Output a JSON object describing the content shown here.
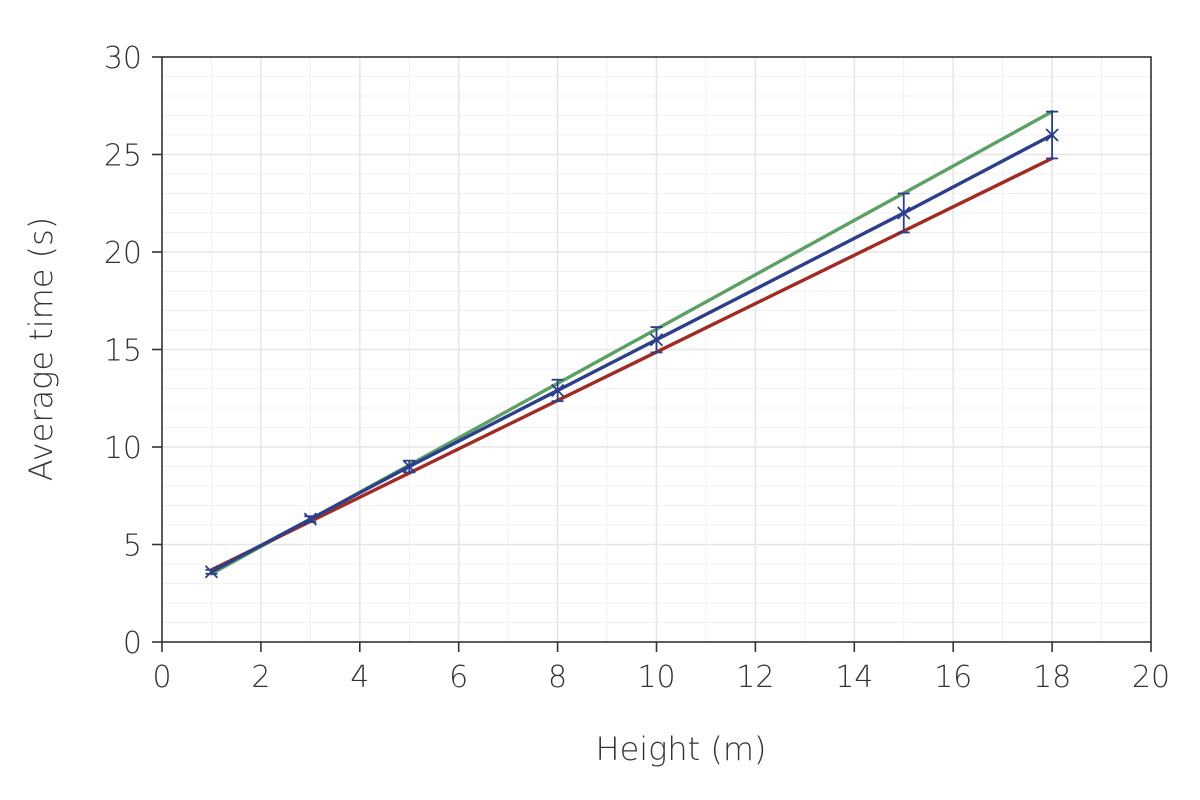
{
  "chart_data": {
    "type": "line",
    "xlabel": "Height (m)",
    "ylabel": "Average time (s)",
    "xlim": [
      0,
      20
    ],
    "ylim": [
      0,
      30
    ],
    "x_ticks": [
      0,
      2,
      4,
      6,
      8,
      10,
      12,
      14,
      16,
      18,
      20
    ],
    "y_ticks": [
      0,
      5,
      10,
      15,
      20,
      25,
      30
    ],
    "x_tick_labels": [
      "0",
      "2",
      "4",
      "6",
      "8",
      "10",
      "12",
      "14",
      "16",
      "18",
      "20"
    ],
    "y_tick_labels": [
      "0",
      "5",
      "10",
      "15",
      "20",
      "25",
      "30"
    ],
    "grid": true,
    "series": [
      {
        "color": "#5ba163",
        "kind": "line",
        "x": [
          1,
          18
        ],
        "y": [
          3.5,
          27.2
        ]
      },
      {
        "color": "#a12a22",
        "kind": "line",
        "x": [
          1,
          18
        ],
        "y": [
          3.7,
          24.8
        ]
      },
      {
        "color": "#2b3f8a",
        "kind": "line_with_markers_and_error_bars",
        "marker": "x",
        "x": [
          1,
          3,
          5,
          8,
          10,
          15,
          18
        ],
        "y": [
          3.6,
          6.3,
          9.0,
          12.9,
          15.5,
          22.0,
          26.0
        ],
        "y_err": [
          0.1,
          0.15,
          0.3,
          0.55,
          0.65,
          1.0,
          1.2
        ]
      }
    ]
  }
}
